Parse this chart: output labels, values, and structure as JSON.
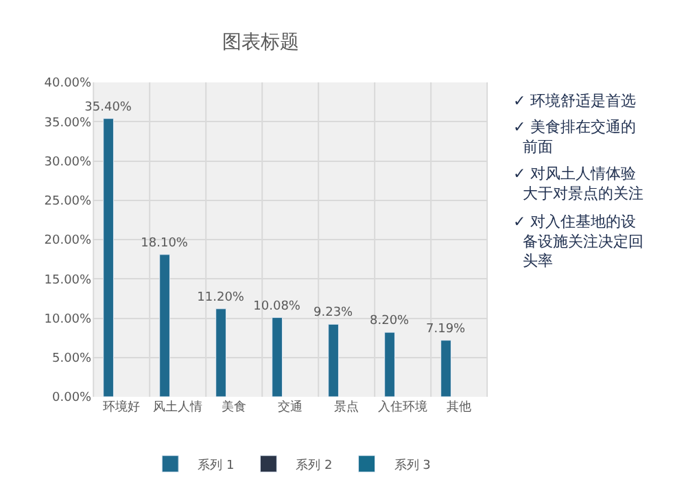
{
  "chart_data": {
    "type": "bar",
    "title": "图表标题",
    "categories": [
      "环境好",
      "风土人情",
      "美食",
      "交通",
      "景点",
      "入住环境",
      "其他"
    ],
    "series": [
      {
        "name": "系列 1",
        "color": "#1f6a8e",
        "values": [
          35.4,
          18.1,
          11.2,
          10.08,
          9.23,
          8.2,
          7.19
        ],
        "value_labels": [
          "35.40%",
          "18.10%",
          "11.20%",
          "10.08%",
          "9.23%",
          "8.20%",
          "7.19%"
        ]
      },
      {
        "name": "系列 2",
        "color": "#2b3548",
        "values": [
          null,
          null,
          null,
          null,
          null,
          null,
          null
        ]
      },
      {
        "name": "系列 3",
        "color": "#176c8c",
        "values": [
          null,
          null,
          null,
          null,
          null,
          null,
          null
        ]
      }
    ],
    "ylim": [
      0,
      40
    ],
    "yticks": [
      {
        "value": 0,
        "label": "0.00%"
      },
      {
        "value": 5,
        "label": "5.00%"
      },
      {
        "value": 10,
        "label": "10.00%"
      },
      {
        "value": 15,
        "label": "15.00%"
      },
      {
        "value": 20,
        "label": "20.00%"
      },
      {
        "value": 25,
        "label": "25.00%"
      },
      {
        "value": 30,
        "label": "30.00%"
      },
      {
        "value": 35,
        "label": "35.00%"
      },
      {
        "value": 40,
        "label": "40.00%"
      }
    ],
    "grid": true,
    "legend": "bottom",
    "annotations": [
      "✓ 环境舒适是首选",
      "✓ 美食排在交通的前面",
      "✓ 对风土人情体验大于对景点的关注",
      "✓ 对入住基地的设备设施关注决定回头率"
    ]
  }
}
